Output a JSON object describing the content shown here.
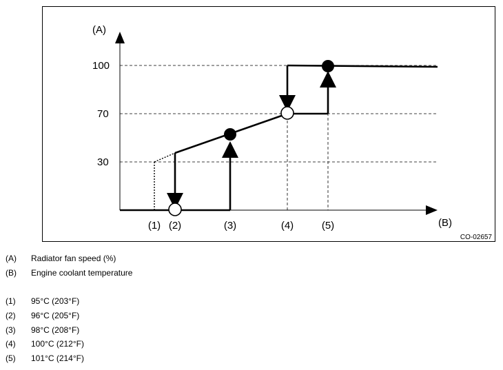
{
  "figure": {
    "y_axis_letter": "(A)",
    "x_axis_letter": "(B)",
    "y_ticks": [
      "100",
      "70",
      "30"
    ],
    "x_markers": [
      "(1)",
      "(2)",
      "(3)",
      "(4)",
      "(5)"
    ],
    "code": "CO-02657"
  },
  "chart_data": {
    "type": "line",
    "ylabel": "(A)",
    "xlabel": "(B)",
    "y_ticks": [
      30,
      70,
      100
    ],
    "x_markers": [
      "(1)",
      "(2)",
      "(3)",
      "(4)",
      "(5)"
    ],
    "series": [
      {
        "values": [
          [
            0,
            0
          ],
          [
            96,
            0
          ],
          [
            96,
            35
          ],
          [
            98,
            52
          ],
          [
            100,
            70
          ],
          [
            100,
            100
          ],
          [
            103,
            100
          ]
        ]
      },
      {
        "values": [
          [
            95,
            0
          ],
          [
            95,
            30
          ]
        ]
      }
    ],
    "grid": "dashed at 30, 70, 100 and at markers (4), (5)"
  },
  "legend": {
    "axes": [
      {
        "key": "(A)",
        "text": "Radiator fan speed (%)"
      },
      {
        "key": "(B)",
        "text": "Engine coolant temperature"
      }
    ],
    "temps": [
      {
        "key": "(1)",
        "text": "95°C (203°F)"
      },
      {
        "key": "(2)",
        "text": "96°C (205°F)"
      },
      {
        "key": "(3)",
        "text": "98°C (208°F)"
      },
      {
        "key": "(4)",
        "text": "100°C (212°F)"
      },
      {
        "key": "(5)",
        "text": "101°C (214°F)"
      }
    ]
  }
}
